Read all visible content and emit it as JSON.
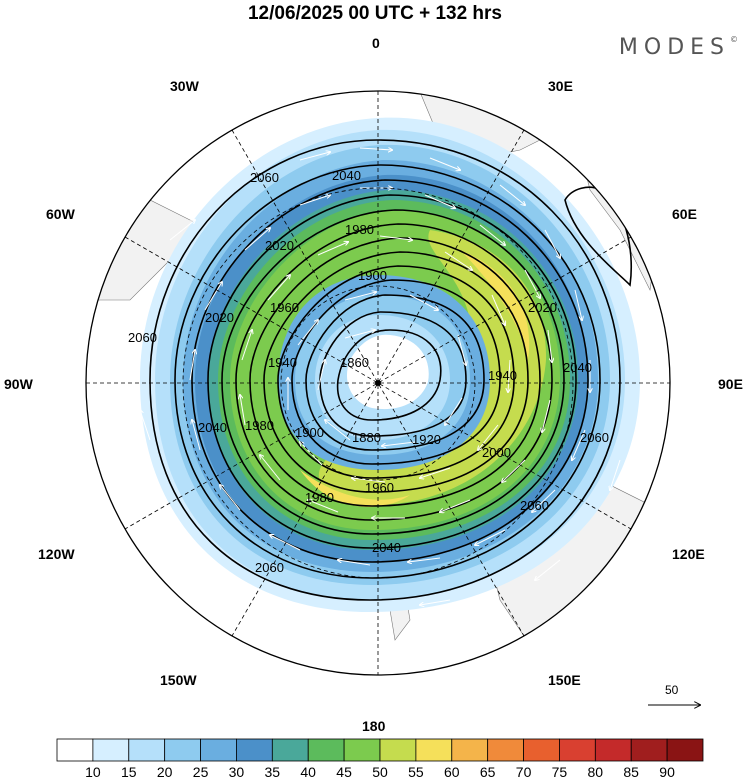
{
  "title": "12/06/2025  00 UTC  + 132 hrs",
  "brand": "MODES",
  "brand_mark": "©",
  "longitude_labels": {
    "n0": "0",
    "e30": "30E",
    "e60": "60E",
    "e90": "90E",
    "e120": "120E",
    "e150": "150E",
    "s180": "180",
    "w150": "150W",
    "w120": "120W",
    "w90": "90W",
    "w60": "60W",
    "w30": "30W"
  },
  "contour_labels": [
    "2060",
    "2040",
    "2020",
    "1980",
    "1960",
    "1940",
    "1900",
    "1880",
    "1860",
    "2060",
    "2040",
    "2020",
    "1920",
    "2000",
    "2060",
    "2040",
    "2060",
    "1980",
    "1960",
    "1880",
    "1900",
    "1920",
    "1940",
    "2000",
    "2020",
    "1980",
    "2040",
    "2060"
  ],
  "reference_vector": "50",
  "colorbar": {
    "ticks": [
      "10",
      "15",
      "20",
      "25",
      "30",
      "35",
      "40",
      "45",
      "50",
      "55",
      "60",
      "65",
      "70",
      "75",
      "80",
      "85",
      "90"
    ],
    "colors": [
      "#ffffff",
      "#d6efff",
      "#b5e0fa",
      "#8ecbef",
      "#6aaee0",
      "#4b90c9",
      "#4aa89a",
      "#5cbb5c",
      "#7ccb4e",
      "#c5dc4e",
      "#f5e05a",
      "#f4b44a",
      "#f08a3a",
      "#e8602e",
      "#d94030",
      "#c42a2a",
      "#a01e1e",
      "#8a1414"
    ]
  }
}
